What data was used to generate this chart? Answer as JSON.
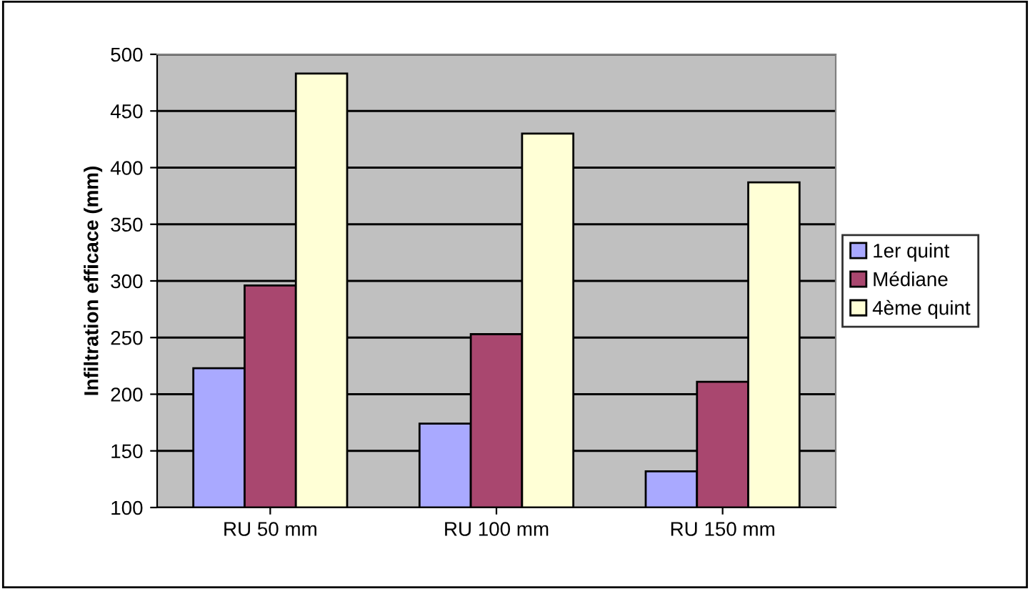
{
  "chart_data": {
    "type": "bar",
    "ylabel": "Infiltration efficace (mm)",
    "categories": [
      "RU 50 mm",
      "RU 100 mm",
      "RU 150 mm"
    ],
    "series": [
      {
        "name": "1er quint",
        "color": "#a9a9ff",
        "values": [
          223,
          174,
          132
        ]
      },
      {
        "name": "Médiane",
        "color": "#a9476f",
        "values": [
          296,
          253,
          211
        ]
      },
      {
        "name": "4ème quint",
        "color": "#ffffd6",
        "values": [
          483,
          430,
          387
        ]
      }
    ],
    "ylim": [
      100,
      500
    ],
    "yticks": [
      100,
      150,
      200,
      250,
      300,
      350,
      400,
      450,
      500
    ],
    "grid": "y",
    "legend": "right"
  }
}
